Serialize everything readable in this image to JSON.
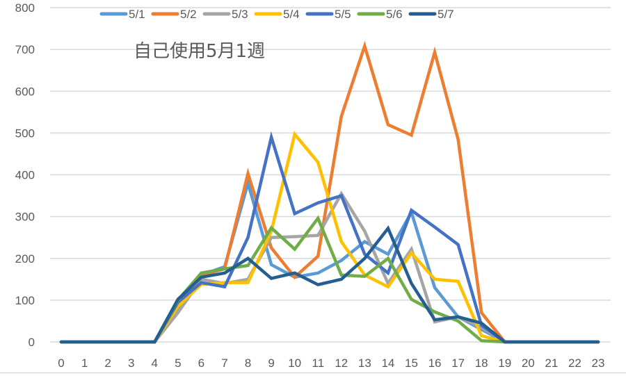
{
  "chart_data": {
    "type": "line",
    "title": "自己使用5月1週",
    "xlabel": "",
    "ylabel": "",
    "x": [
      0,
      1,
      2,
      3,
      4,
      5,
      6,
      7,
      8,
      9,
      10,
      11,
      12,
      13,
      14,
      15,
      16,
      17,
      18,
      19,
      20,
      21,
      22,
      23
    ],
    "ylim": [
      0,
      800
    ],
    "yticks": [
      0,
      100,
      200,
      300,
      400,
      500,
      600,
      700,
      800
    ],
    "grid": true,
    "legend_position": "top",
    "series": [
      {
        "name": "5/1",
        "color": "#5B9BD5",
        "values": [
          0,
          0,
          0,
          0,
          0,
          80,
          160,
          180,
          380,
          185,
          155,
          165,
          195,
          240,
          210,
          310,
          130,
          60,
          30,
          0,
          0,
          0,
          0,
          0
        ]
      },
      {
        "name": "5/2",
        "color": "#ED7D31",
        "values": [
          0,
          0,
          0,
          0,
          0,
          90,
          160,
          175,
          403,
          225,
          155,
          205,
          540,
          708,
          520,
          495,
          693,
          485,
          70,
          0,
          0,
          0,
          0,
          0
        ]
      },
      {
        "name": "5/3",
        "color": "#A5A5A5",
        "values": [
          0,
          0,
          0,
          0,
          0,
          70,
          150,
          140,
          150,
          250,
          252,
          255,
          355,
          265,
          140,
          222,
          48,
          60,
          35,
          0,
          0,
          0,
          0,
          0
        ]
      },
      {
        "name": "5/4",
        "color": "#FFC000",
        "values": [
          0,
          0,
          0,
          0,
          0,
          85,
          138,
          142,
          142,
          265,
          497,
          430,
          240,
          160,
          132,
          213,
          150,
          145,
          15,
          0,
          0,
          0,
          0,
          0
        ]
      },
      {
        "name": "5/5",
        "color": "#4472C4",
        "values": [
          0,
          0,
          0,
          0,
          0,
          95,
          142,
          132,
          250,
          490,
          307,
          333,
          350,
          210,
          165,
          315,
          275,
          233,
          40,
          0,
          0,
          0,
          0,
          0
        ]
      },
      {
        "name": "5/6",
        "color": "#70AD47",
        "values": [
          0,
          0,
          0,
          0,
          0,
          100,
          165,
          175,
          183,
          273,
          222,
          296,
          160,
          157,
          200,
          102,
          72,
          50,
          3,
          0,
          0,
          0,
          0,
          0
        ]
      },
      {
        "name": "5/7",
        "color": "#255E91",
        "values": [
          0,
          0,
          0,
          0,
          0,
          102,
          155,
          165,
          200,
          152,
          165,
          137,
          150,
          200,
          272,
          140,
          53,
          60,
          45,
          0,
          0,
          0,
          0,
          0
        ]
      }
    ]
  },
  "labels": {
    "title": "自己使用5月1週",
    "yticks": [
      "0",
      "100",
      "200",
      "300",
      "400",
      "500",
      "600",
      "700",
      "800"
    ],
    "xticks": [
      "0",
      "1",
      "2",
      "3",
      "4",
      "5",
      "6",
      "7",
      "8",
      "9",
      "10",
      "11",
      "12",
      "13",
      "14",
      "15",
      "16",
      "17",
      "18",
      "19",
      "20",
      "21",
      "22",
      "23"
    ],
    "legend": [
      "5/1",
      "5/2",
      "5/3",
      "5/4",
      "5/5",
      "5/6",
      "5/7"
    ]
  },
  "colors": {
    "grid": "#D9D9D9",
    "text": "#595959",
    "background": "#FFFFFF"
  }
}
